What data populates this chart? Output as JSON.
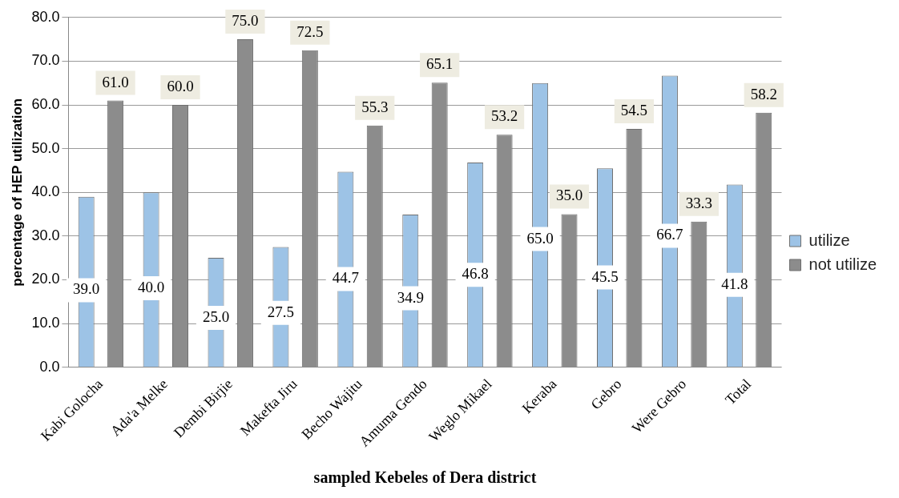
{
  "chart_data": {
    "type": "bar",
    "xlabel": "sampled Kebeles of Dera district",
    "ylabel": "percentage of HEP utilization",
    "categories": [
      "Kabi Golocha",
      "Ada'a Melke",
      "Dembi Birjie",
      "Makefta Jiru",
      "Becho Wajitu",
      "Amuma Gendo",
      "Weglo Mikael",
      "Keraba",
      "Gebro",
      "Were Gebro",
      "Total"
    ],
    "series": [
      {
        "name": "utilize",
        "color": "#9dc3e6",
        "values": [
          39.0,
          40.0,
          25.0,
          27.5,
          44.7,
          34.9,
          46.8,
          65.0,
          45.5,
          66.7,
          41.8
        ],
        "value_labels": [
          "39.0",
          "40.0",
          "25.0",
          "27.5",
          "44.7",
          "34.9",
          "46.8",
          "65.0",
          "45.5",
          "66.7",
          "41.8"
        ]
      },
      {
        "name": "not utilize",
        "color": "#8c8c8c",
        "values": [
          61.0,
          60.0,
          75.0,
          72.5,
          55.3,
          65.1,
          53.2,
          35.0,
          54.5,
          33.3,
          58.2
        ],
        "value_labels": [
          "61.0",
          "60.0",
          "75.0",
          "72.5",
          "55.3",
          "65.1",
          "53.2",
          "35.0",
          "54.5",
          "33.3",
          "58.2"
        ]
      }
    ],
    "ylim": [
      0,
      80
    ],
    "yticks": [
      {
        "value": 0,
        "label": "0.0"
      },
      {
        "value": 10,
        "label": "10.0"
      },
      {
        "value": 20,
        "label": "20.0"
      },
      {
        "value": 30,
        "label": "30.0"
      },
      {
        "value": 40,
        "label": "40.0"
      },
      {
        "value": 50,
        "label": "50.0"
      },
      {
        "value": 60,
        "label": "60.0"
      },
      {
        "value": 70,
        "label": "70.0"
      },
      {
        "value": 80,
        "label": "80.0"
      }
    ],
    "grid": "y",
    "legend": "right"
  }
}
